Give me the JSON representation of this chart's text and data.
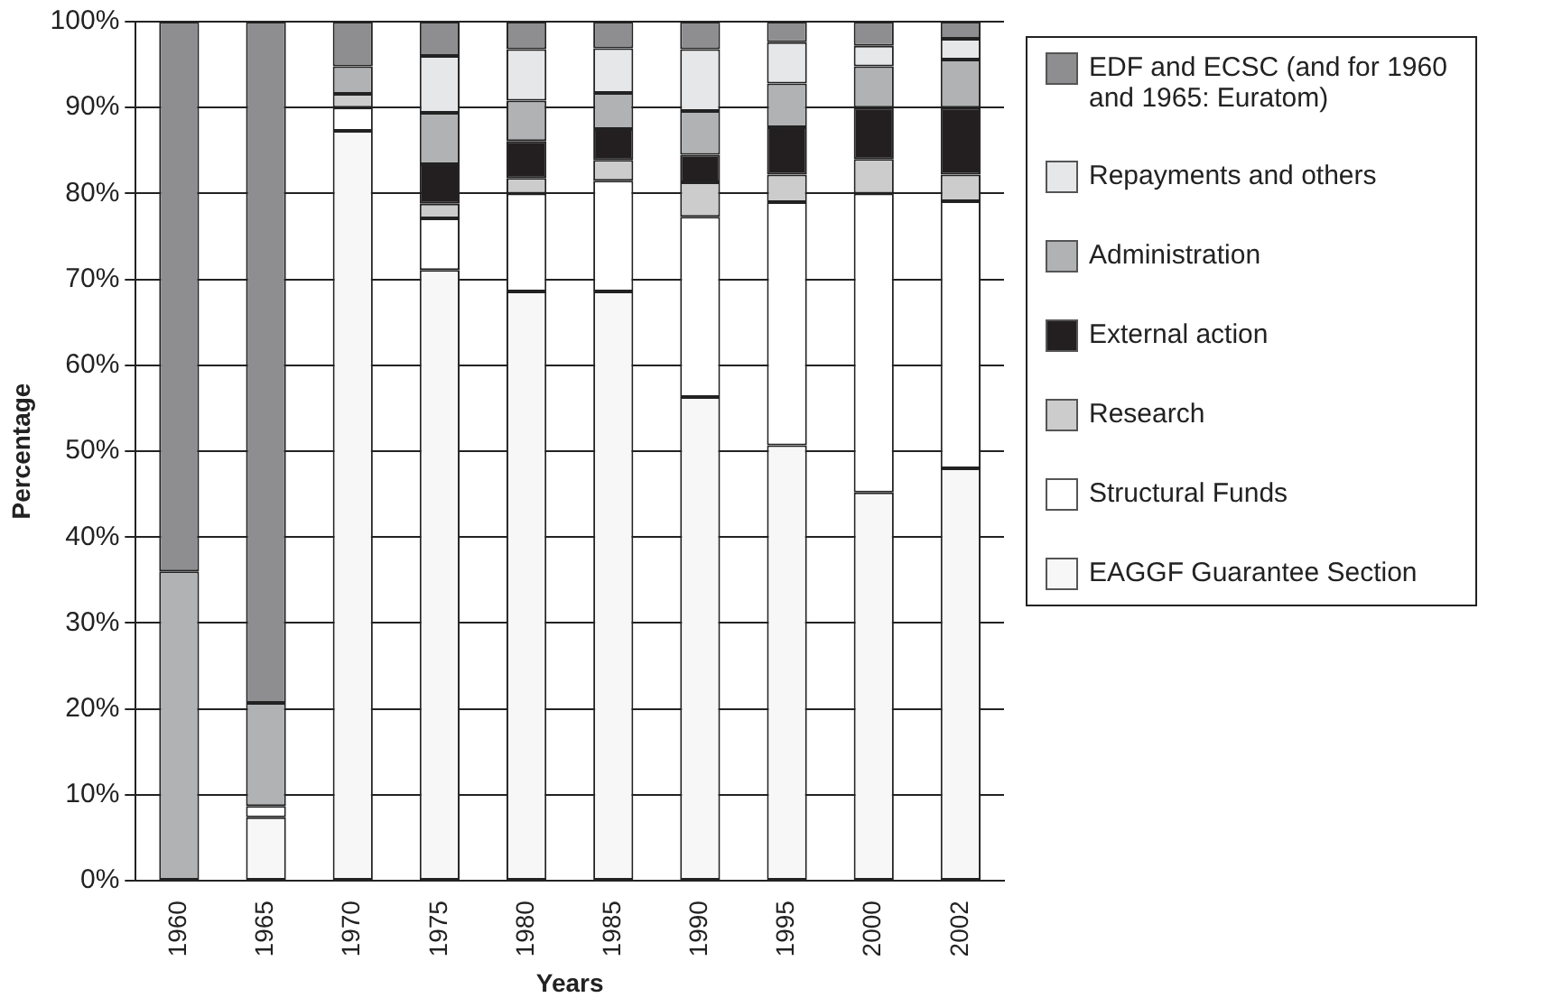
{
  "chart_data": {
    "type": "bar",
    "stacked": true,
    "xlabel": "Years",
    "ylabel": "Percentage",
    "categories": [
      "1960",
      "1965",
      "1970",
      "1975",
      "1980",
      "1985",
      "1990",
      "1995",
      "2000",
      "2002"
    ],
    "series": [
      {
        "name": "EAGGF Guarantee Section",
        "color": "#f7f7f7",
        "values": [
          0,
          7.4,
          87.3,
          71.1,
          68.6,
          68.6,
          56.3,
          50.7,
          45.2,
          48
        ]
      },
      {
        "name": "Structural Funds",
        "color": "#ffffff",
        "values": [
          0,
          1.3,
          2.7,
          6,
          11.4,
          12.9,
          21,
          28.3,
          34.8,
          31.1
        ]
      },
      {
        "name": "Research",
        "color": "#cccccc",
        "values": [
          0,
          0,
          1.6,
          1.7,
          1.8,
          2.4,
          4,
          3.2,
          4,
          3.1
        ]
      },
      {
        "name": "External action",
        "color": "#231f20",
        "values": [
          0,
          0,
          0,
          4.6,
          4.3,
          3.6,
          3.2,
          5.5,
          6,
          7.8
        ]
      },
      {
        "name": "Administration",
        "color": "#b1b2b4",
        "values": [
          36,
          12,
          3.2,
          6,
          4.7,
          4.2,
          5.1,
          5.1,
          4.8,
          5.6
        ]
      },
      {
        "name": "Repayments and others",
        "color": "#e6e7e8",
        "values": [
          0,
          0,
          0,
          6.6,
          6,
          5.2,
          7.2,
          4.8,
          2.4,
          2.4
        ]
      },
      {
        "name": "EDF and ECSC (and for 1960 and 1965: Euratom)",
        "color": "#8e8e90",
        "values": [
          64,
          79.3,
          5.2,
          4,
          3.2,
          3.1,
          3.2,
          2.4,
          2.8,
          2
        ]
      }
    ],
    "ylim": [
      0,
      100
    ],
    "yticks": [
      {
        "value": 0,
        "label": "0%"
      },
      {
        "value": 10,
        "label": "10%"
      },
      {
        "value": 20,
        "label": "20%"
      },
      {
        "value": 30,
        "label": "30%"
      },
      {
        "value": 40,
        "label": "40%"
      },
      {
        "value": 50,
        "label": "50%"
      },
      {
        "value": 60,
        "label": "60%"
      },
      {
        "value": 70,
        "label": "70%"
      },
      {
        "value": 80,
        "label": "80%"
      },
      {
        "value": 90,
        "label": "90%"
      },
      {
        "value": 100,
        "label": "100%"
      }
    ],
    "grid": "y",
    "legend": "right"
  }
}
